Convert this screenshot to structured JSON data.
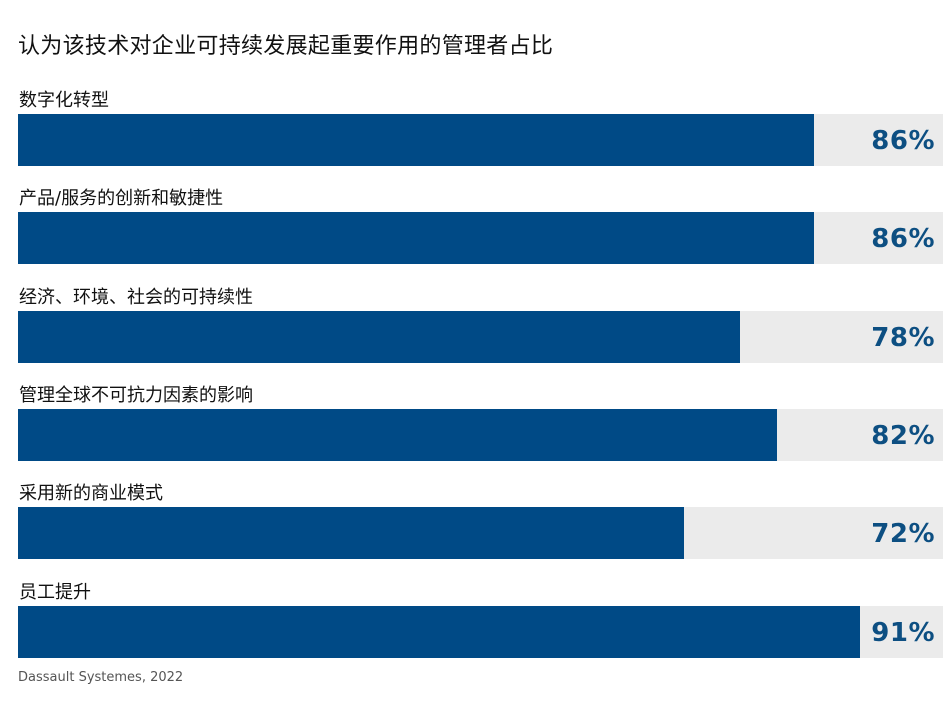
{
  "chart_data": {
    "type": "bar",
    "orientation": "horizontal",
    "title": "认为该技术对企业可持续发展起重要作用的管理者占比",
    "categories": [
      "数字化转型",
      "产品/服务的创新和敏捷性",
      "经济、环境、社会的可持续性",
      "管理全球不可抗力因素的影响",
      "采用新的商业模式",
      "员工提升"
    ],
    "values": [
      86,
      86,
      78,
      82,
      72,
      91
    ],
    "value_labels": [
      "86%",
      "86%",
      "78%",
      "82%",
      "72%",
      "91%"
    ],
    "xlim": [
      0,
      100
    ],
    "grid": false,
    "legend": "none",
    "colors": {
      "bar": "#004a86",
      "track": "#ebebeb",
      "value_text": "#0d4f82"
    }
  },
  "footer": {
    "source": "Dassault Systemes, 2022"
  }
}
